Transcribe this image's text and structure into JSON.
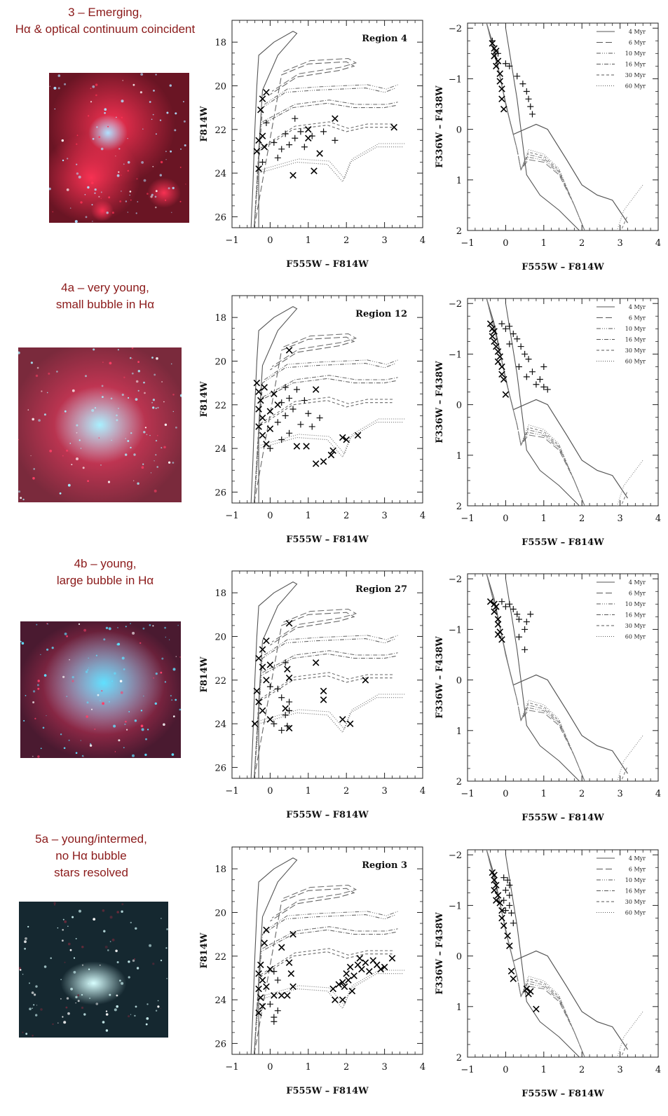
{
  "rows": [
    {
      "label_lines": [
        "3 – Emerging,",
        "Hα & optical continuum coincident"
      ],
      "thumb": {
        "bg": "#6a1524",
        "hot": "#ff3355",
        "core": "#b0e0ff",
        "style": "emerging"
      },
      "cmd": {
        "region": "Region 4",
        "xs": [
          [
            -0.2,
            20.6
          ],
          [
            -0.1,
            20.3
          ],
          [
            -0.25,
            21.1
          ],
          [
            -0.3,
            22.5
          ],
          [
            -0.2,
            22.3
          ],
          [
            -0.35,
            23.0
          ],
          [
            -0.3,
            23.8
          ],
          [
            -0.15,
            22.8
          ],
          [
            0.6,
            24.1
          ],
          [
            1.0,
            22.0
          ],
          [
            1.0,
            22.4
          ],
          [
            1.3,
            23.1
          ],
          [
            1.15,
            23.9
          ],
          [
            1.7,
            21.5
          ],
          [
            3.25,
            21.9
          ]
        ],
        "plus": [
          [
            -0.1,
            21.7
          ],
          [
            0.1,
            22.6
          ],
          [
            0.3,
            22.9
          ],
          [
            0.4,
            22.2
          ],
          [
            0.5,
            22.7
          ],
          [
            0.65,
            22.4
          ],
          [
            0.8,
            22.1
          ],
          [
            0.9,
            22.8
          ],
          [
            0.65,
            21.5
          ],
          [
            1.1,
            22.3
          ],
          [
            1.4,
            22.1
          ],
          [
            1.7,
            22.5
          ],
          [
            0.2,
            23.3
          ],
          [
            -0.2,
            23.5
          ]
        ]
      },
      "ccd": {
        "xs": [
          [
            -0.35,
            -1.7
          ],
          [
            -0.3,
            -1.6
          ],
          [
            -0.25,
            -1.55
          ],
          [
            -0.3,
            -1.45
          ],
          [
            -0.2,
            -1.35
          ],
          [
            -0.25,
            -1.25
          ],
          [
            -0.15,
            -1.1
          ],
          [
            -0.15,
            -0.95
          ],
          [
            -0.1,
            -0.8
          ],
          [
            -0.1,
            -0.6
          ],
          [
            -0.05,
            -0.4
          ]
        ],
        "plus": [
          [
            -0.35,
            -1.75
          ],
          [
            -0.2,
            -1.5
          ],
          [
            0.0,
            -1.3
          ],
          [
            0.1,
            -1.25
          ],
          [
            0.3,
            -1.05
          ],
          [
            0.45,
            -0.9
          ],
          [
            0.55,
            -0.75
          ],
          [
            0.6,
            -0.6
          ],
          [
            0.65,
            -0.45
          ],
          [
            0.7,
            -0.3
          ]
        ]
      }
    },
    {
      "label_lines": [
        "4a – very young,",
        "small bubble in Hα"
      ],
      "thumb": {
        "bg": "#7a2a3c",
        "hot": "#ff3f66",
        "core": "#a8f0ff",
        "style": "bubble-small"
      },
      "cmd": {
        "region": "Region 12",
        "xs": [
          [
            0.5,
            19.5
          ],
          [
            -0.35,
            21.0
          ],
          [
            -0.3,
            21.4
          ],
          [
            -0.25,
            21.8
          ],
          [
            -0.3,
            22.2
          ],
          [
            -0.2,
            22.6
          ],
          [
            -0.3,
            23.0
          ],
          [
            -0.2,
            23.4
          ],
          [
            -0.1,
            23.8
          ],
          [
            0.0,
            22.3
          ],
          [
            0.1,
            21.5
          ],
          [
            0.2,
            22.0
          ],
          [
            0.0,
            23.1
          ],
          [
            -0.15,
            21.2
          ],
          [
            0.7,
            23.9
          ],
          [
            0.95,
            23.9
          ],
          [
            1.2,
            21.3
          ],
          [
            1.2,
            24.7
          ],
          [
            1.4,
            24.6
          ],
          [
            1.6,
            24.3
          ],
          [
            1.65,
            24.1
          ],
          [
            1.9,
            23.5
          ],
          [
            2.0,
            23.6
          ],
          [
            2.3,
            23.4
          ]
        ],
        "plus": [
          [
            0.2,
            22.8
          ],
          [
            0.3,
            21.9
          ],
          [
            0.4,
            22.5
          ],
          [
            0.5,
            21.7
          ],
          [
            0.5,
            23.3
          ],
          [
            0.6,
            22.2
          ],
          [
            0.7,
            21.3
          ],
          [
            0.8,
            22.9
          ],
          [
            0.9,
            21.8
          ],
          [
            1.0,
            22.4
          ],
          [
            1.1,
            23.0
          ],
          [
            1.3,
            22.6
          ],
          [
            0.4,
            21.2
          ],
          [
            0.3,
            23.6
          ],
          [
            0.0,
            24.0
          ]
        ]
      },
      "ccd": {
        "xs": [
          [
            -0.4,
            -1.6
          ],
          [
            -0.35,
            -1.5
          ],
          [
            -0.3,
            -1.45
          ],
          [
            -0.35,
            -1.35
          ],
          [
            -0.3,
            -1.25
          ],
          [
            -0.25,
            -1.15
          ],
          [
            -0.2,
            -1.05
          ],
          [
            -0.15,
            -0.95
          ],
          [
            -0.2,
            -0.85
          ],
          [
            -0.1,
            -0.75
          ],
          [
            -0.05,
            -0.5
          ],
          [
            -0.1,
            -0.6
          ],
          [
            0.0,
            -0.2
          ]
        ],
        "plus": [
          [
            -0.1,
            -1.6
          ],
          [
            0.0,
            -1.5
          ],
          [
            0.1,
            -1.55
          ],
          [
            0.2,
            -1.4
          ],
          [
            0.3,
            -1.3
          ],
          [
            0.1,
            -1.2
          ],
          [
            0.4,
            -1.15
          ],
          [
            0.5,
            -1.0
          ],
          [
            0.6,
            -0.9
          ],
          [
            0.35,
            -0.75
          ],
          [
            0.55,
            -0.55
          ],
          [
            0.7,
            -0.65
          ],
          [
            0.9,
            -0.5
          ],
          [
            1.0,
            -0.35
          ],
          [
            1.1,
            -0.3
          ],
          [
            0.8,
            -0.4
          ],
          [
            1.0,
            -0.75
          ]
        ]
      }
    },
    {
      "label_lines": [
        "4b – young,",
        "large bubble in Hα"
      ],
      "thumb": {
        "bg": "#4a1a30",
        "hot": "#ff3f6a",
        "core": "#60e0ff",
        "style": "bubble-large"
      },
      "cmd": {
        "region": "Region 27",
        "xs": [
          [
            -0.1,
            20.2
          ],
          [
            -0.2,
            20.6
          ],
          [
            -0.3,
            21.0
          ],
          [
            -0.2,
            21.4
          ],
          [
            0.0,
            21.3
          ],
          [
            -0.35,
            22.5
          ],
          [
            -0.3,
            23.0
          ],
          [
            -0.2,
            23.4
          ],
          [
            -0.4,
            24.0
          ],
          [
            -0.1,
            22.0
          ],
          [
            0.0,
            23.8
          ],
          [
            0.4,
            23.3
          ],
          [
            0.5,
            24.2
          ],
          [
            0.45,
            21.5
          ],
          [
            0.5,
            21.9
          ],
          [
            0.5,
            19.4
          ],
          [
            1.2,
            21.2
          ],
          [
            1.4,
            22.5
          ],
          [
            1.4,
            22.9
          ],
          [
            1.9,
            23.8
          ],
          [
            2.1,
            24.0
          ],
          [
            2.5,
            22.0
          ]
        ],
        "plus": [
          [
            0.3,
            22.8
          ],
          [
            0.4,
            23.6
          ],
          [
            0.45,
            24.1
          ],
          [
            0.5,
            23.4
          ],
          [
            0.3,
            24.3
          ],
          [
            0.1,
            24.0
          ],
          [
            0.5,
            23.0
          ],
          [
            0.2,
            22.4
          ],
          [
            0.4,
            21.2
          ],
          [
            0.0,
            22.3
          ]
        ]
      },
      "ccd": {
        "xs": [
          [
            -0.4,
            -1.55
          ],
          [
            -0.3,
            -1.5
          ],
          [
            -0.25,
            -1.45
          ],
          [
            -0.3,
            -1.35
          ],
          [
            -0.2,
            -1.2
          ],
          [
            -0.2,
            -1.1
          ],
          [
            -0.15,
            -0.95
          ],
          [
            -0.1,
            -0.8
          ],
          [
            -0.2,
            -0.9
          ]
        ],
        "plus": [
          [
            -0.1,
            -1.55
          ],
          [
            0.0,
            -1.45
          ],
          [
            0.1,
            -1.5
          ],
          [
            0.2,
            -1.4
          ],
          [
            0.3,
            -1.3
          ],
          [
            0.35,
            -1.2
          ],
          [
            0.5,
            -1.0
          ],
          [
            0.35,
            -0.85
          ],
          [
            0.5,
            -0.6
          ],
          [
            0.55,
            -1.15
          ],
          [
            0.65,
            -1.3
          ]
        ]
      }
    },
    {
      "label_lines": [
        "5a – young/intermed,",
        "no Hα bubble",
        "stars resolved"
      ],
      "thumb": {
        "bg": "#152830",
        "hot": "#6a2a3a",
        "core": "#d8ffff",
        "style": "resolved"
      },
      "cmd": {
        "region": "Region 3",
        "xs": [
          [
            -0.1,
            20.8
          ],
          [
            -0.15,
            21.4
          ],
          [
            -0.25,
            22.4
          ],
          [
            -0.3,
            22.8
          ],
          [
            -0.2,
            23.1
          ],
          [
            -0.3,
            23.5
          ],
          [
            -0.25,
            23.9
          ],
          [
            -0.2,
            24.3
          ],
          [
            -0.3,
            24.6
          ],
          [
            -0.1,
            23.4
          ],
          [
            0.0,
            22.6
          ],
          [
            0.3,
            21.6
          ],
          [
            0.5,
            22.3
          ],
          [
            0.6,
            21.0
          ],
          [
            0.1,
            23.8
          ],
          [
            0.3,
            23.8
          ],
          [
            0.45,
            23.8
          ],
          [
            0.55,
            22.8
          ],
          [
            0.6,
            23.4
          ],
          [
            1.65,
            23.5
          ],
          [
            1.7,
            24.0
          ],
          [
            1.8,
            23.3
          ],
          [
            1.9,
            23.2
          ],
          [
            2.0,
            22.8
          ],
          [
            2.1,
            22.5
          ],
          [
            2.2,
            22.9
          ],
          [
            2.3,
            22.4
          ],
          [
            2.4,
            22.6
          ],
          [
            2.5,
            22.3
          ],
          [
            2.6,
            22.7
          ],
          [
            2.8,
            22.4
          ],
          [
            2.9,
            22.6
          ],
          [
            3.0,
            22.5
          ],
          [
            3.2,
            22.1
          ],
          [
            1.9,
            24.0
          ],
          [
            1.95,
            23.4
          ],
          [
            2.05,
            23.1
          ],
          [
            2.15,
            23.6
          ],
          [
            2.35,
            22.1
          ],
          [
            2.7,
            22.2
          ]
        ],
        "plus": [
          [
            0.0,
            24.2
          ],
          [
            0.1,
            24.8
          ],
          [
            0.1,
            25.0
          ],
          [
            0.2,
            24.5
          ],
          [
            0.1,
            22.7
          ],
          [
            0.2,
            23.1
          ]
        ]
      },
      "ccd": {
        "xs": [
          [
            -0.35,
            -1.65
          ],
          [
            -0.3,
            -1.6
          ],
          [
            -0.3,
            -1.5
          ],
          [
            -0.25,
            -1.4
          ],
          [
            -0.3,
            -1.3
          ],
          [
            -0.2,
            -1.2
          ],
          [
            -0.25,
            -1.1
          ],
          [
            -0.15,
            -1.05
          ],
          [
            -0.1,
            -0.9
          ],
          [
            -0.1,
            -0.75
          ],
          [
            -0.05,
            -0.6
          ],
          [
            0.05,
            -0.4
          ],
          [
            0.1,
            -0.2
          ],
          [
            0.15,
            0.3
          ],
          [
            0.2,
            0.45
          ],
          [
            0.55,
            0.65
          ],
          [
            0.6,
            0.75
          ],
          [
            0.65,
            0.7
          ],
          [
            0.8,
            1.05
          ]
        ],
        "plus": [
          [
            -0.05,
            -1.55
          ],
          [
            0.05,
            -1.5
          ],
          [
            0.1,
            -1.4
          ],
          [
            0.0,
            -1.3
          ],
          [
            0.1,
            -1.2
          ],
          [
            -0.05,
            -1.1
          ],
          [
            0.1,
            -1.0
          ],
          [
            0.0,
            -0.9
          ],
          [
            0.15,
            -0.85
          ],
          [
            0.2,
            -0.65
          ]
        ]
      }
    }
  ],
  "cmd_axes": {
    "xlabel": "F555W – F814W",
    "ylabel": "F814W",
    "xlim": [
      -1,
      4
    ],
    "ylim": [
      26.5,
      17
    ],
    "xticks": [
      "−1",
      "0",
      "1",
      "2",
      "3",
      "4"
    ],
    "yticks": [
      "18",
      "20",
      "22",
      "24",
      "26"
    ]
  },
  "ccd_axes": {
    "xlabel": "F555W – F814W",
    "ylabel": "F336W – F438W",
    "xlim": [
      -1,
      4
    ],
    "ylim": [
      2,
      -2.1
    ],
    "xticks": [
      "−1",
      "0",
      "1",
      "2",
      "3",
      "4"
    ],
    "yticks": [
      "−2",
      "−1",
      "0",
      "1",
      "2"
    ]
  },
  "legend": [
    {
      "label": "4 Myr",
      "dash": ""
    },
    {
      "label": "6 Myr",
      "dash": "9,4"
    },
    {
      "label": "10 Myr",
      "dash": "6,2,1,2,1,2,1,2"
    },
    {
      "label": "16 Myr",
      "dash": "6,2,1,2"
    },
    {
      "label": "30 Myr",
      "dash": "4,3"
    },
    {
      "label": "60 Myr",
      "dash": "1,2"
    }
  ],
  "isochrones_cmd": [
    {
      "age": "6 Myr",
      "dash": "9,4",
      "points": [
        [
          0.3,
          19.5
        ],
        [
          1.0,
          19.0
        ],
        [
          2.0,
          18.9
        ],
        [
          2.2,
          19.1
        ],
        [
          1.8,
          19.3
        ],
        [
          0.7,
          19.6
        ],
        [
          0.0,
          20.4
        ]
      ]
    },
    {
      "age": "10 Myr",
      "dash": "6,2,1,2,1,2,1,2",
      "points": [
        [
          -0.2,
          21.0
        ],
        [
          0.4,
          20.3
        ],
        [
          1.2,
          20.2
        ],
        [
          2.5,
          20.1
        ],
        [
          3.0,
          20.3
        ],
        [
          3.3,
          20.1
        ]
      ]
    },
    {
      "age": "16 Myr",
      "dash": "6,2,1,2",
      "points": [
        [
          -0.25,
          21.8
        ],
        [
          0.6,
          21.0
        ],
        [
          1.5,
          20.8
        ],
        [
          2.2,
          21.0
        ],
        [
          3.0,
          21.0
        ],
        [
          3.3,
          20.9
        ]
      ]
    },
    {
      "age": "30 Myr",
      "dash": "4,3",
      "points": [
        [
          -0.3,
          23.0
        ],
        [
          0.6,
          22.0
        ],
        [
          1.5,
          21.8
        ],
        [
          2.0,
          22.1
        ],
        [
          2.5,
          21.9
        ],
        [
          3.2,
          21.9
        ]
      ]
    },
    {
      "age": "60 Myr",
      "dash": "1,2",
      "points": [
        [
          -0.3,
          24.0
        ],
        [
          0.7,
          23.5
        ],
        [
          1.5,
          23.6
        ],
        [
          1.9,
          24.4
        ],
        [
          2.1,
          23.5
        ],
        [
          2.8,
          22.8
        ],
        [
          3.5,
          22.8
        ]
      ]
    }
  ]
}
